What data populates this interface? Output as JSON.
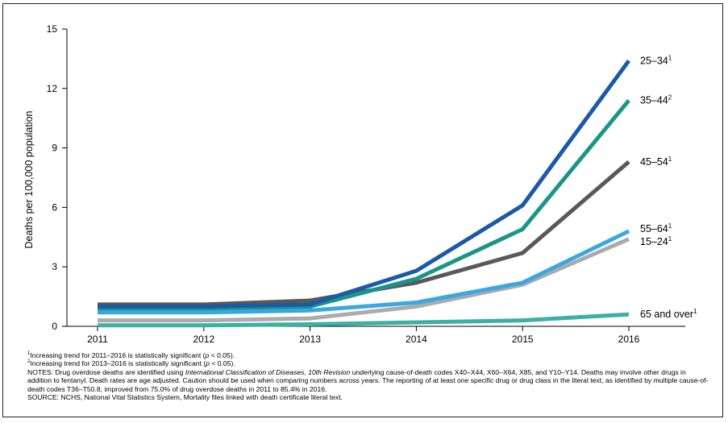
{
  "chart_data": {
    "type": "line",
    "title": "",
    "xlabel": "",
    "ylabel": "Deaths per 100,000 population",
    "x": [
      "2011",
      "2012",
      "2013",
      "2014",
      "2015",
      "2016"
    ],
    "ylim": [
      0,
      15
    ],
    "yticks": [
      "0",
      "3",
      "6",
      "9",
      "12",
      "15"
    ],
    "grid": false,
    "legend": "direct labels at line ends (right)",
    "series": [
      {
        "name": "25–34",
        "sup": "1",
        "color": "#1a5aa8",
        "values": [
          1.0,
          1.0,
          1.1,
          2.8,
          6.1,
          13.4
        ]
      },
      {
        "name": "35–44",
        "sup": "2",
        "color": "#1a9688",
        "values": [
          0.9,
          0.9,
          1.0,
          2.4,
          4.9,
          11.4
        ]
      },
      {
        "name": "45–54",
        "sup": "1",
        "color": "#595959",
        "values": [
          1.1,
          1.1,
          1.3,
          2.2,
          3.7,
          8.3
        ]
      },
      {
        "name": "55–64",
        "sup": "1",
        "color": "#3aa8e0",
        "values": [
          0.7,
          0.7,
          0.8,
          1.2,
          2.2,
          4.8
        ]
      },
      {
        "name": "15–24",
        "sup": "1",
        "color": "#ababab",
        "values": [
          0.3,
          0.3,
          0.4,
          1.0,
          2.1,
          4.4
        ]
      },
      {
        "name": "65 and over",
        "sup": "1",
        "color": "#3bb0a4",
        "values": [
          0.05,
          0.05,
          0.1,
          0.2,
          0.3,
          0.6
        ]
      }
    ]
  },
  "footnotes": {
    "f1_sup": "1",
    "f1_pre": "Increasing trend for 2011–2016 is statistically significant (",
    "f1_p": "p",
    "f1_post": " < 0.05).",
    "f2_sup": "2",
    "f2_pre": "Increasing trend for 2013–2016 is statistically significant (",
    "f2_p": "p",
    "f2_post": " < 0.05).",
    "notes_pre": "NOTES: Drug overdose deaths are identified using ",
    "notes_italic": "International Classification of Diseases, 10th Revision",
    "notes_post": " underlying cause-of-death codes X40–X44, X60–X64, X85, and Y10–Y14. Deaths may involve other drugs in addition to fentanyl. Death rates are age adjusted. Caution should be used when comparing numbers across years. The reporting of at least one specific drug or drug class in the literal text, as identified by multiple cause-of-death codes T36–T50.8, improved from 75.0% of drug overdose deaths in 2011 to 85.4% in 2016.",
    "source": "SOURCE: NCHS, National Vital Statistics System, Mortality files linked with death certificate literal text."
  }
}
